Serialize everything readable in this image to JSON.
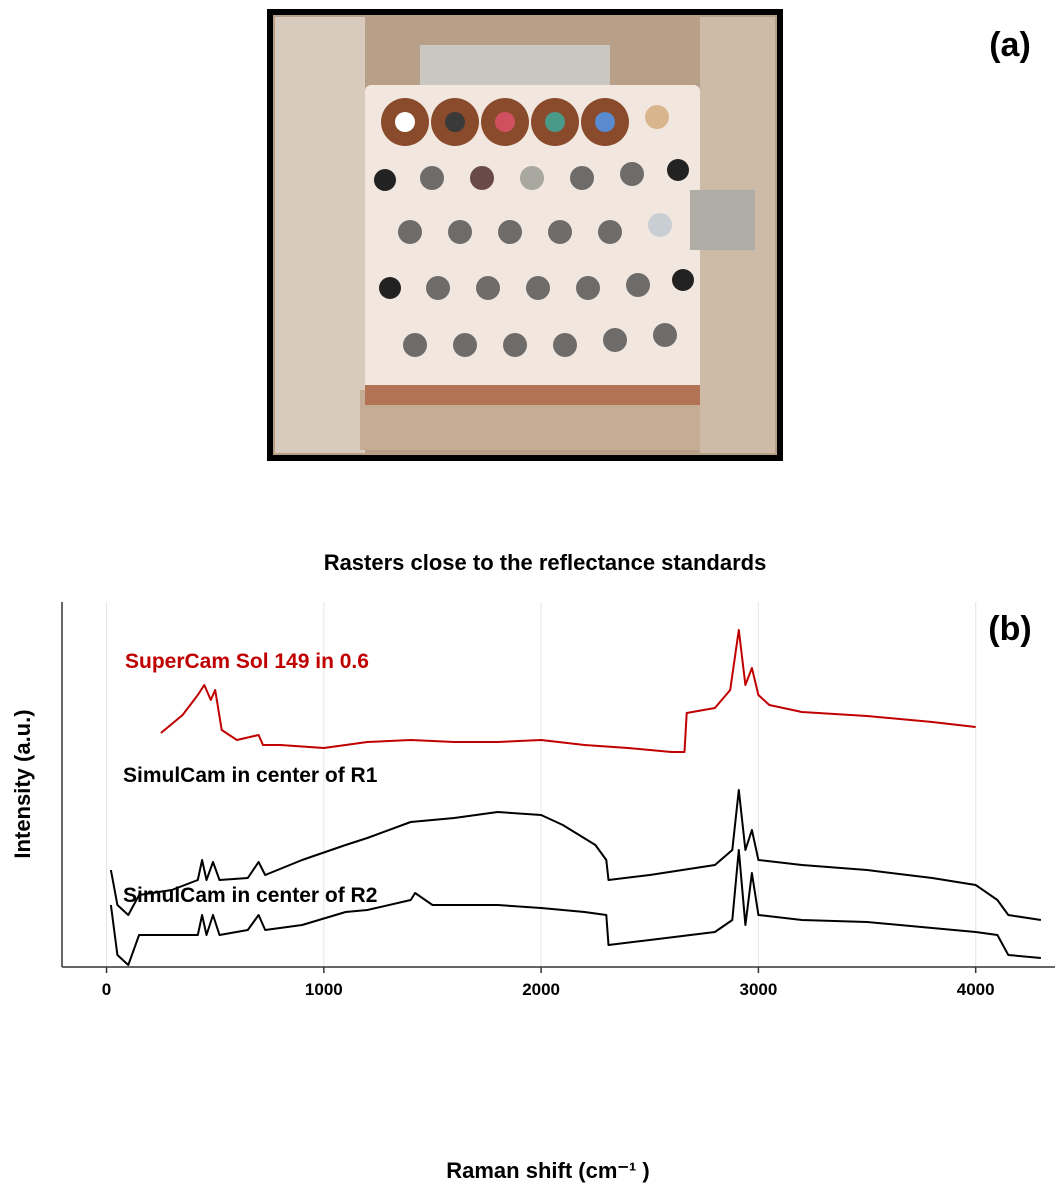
{
  "panel_a": {
    "label": "(a)"
  },
  "chart_data": {
    "type": "line",
    "panel_label": "(b)",
    "title": "Rasters close to the reflectance standards",
    "x_label": "Raman shift (cm⁻¹ )",
    "y_label": "Intensity (a.u.)",
    "xlim": [
      -205,
      4365
    ],
    "ylim": [
      -5,
      360
    ],
    "xticks": [
      0,
      1000,
      2000,
      3000,
      4000
    ],
    "grid": true,
    "series": [
      {
        "name": "SuperCam Sol 149 in 0.6",
        "color": "#c00000",
        "x": [
          250,
          350,
          420,
          450,
          480,
          500,
          530,
          600,
          700,
          720,
          800,
          1000,
          1200,
          1400,
          1600,
          1800,
          2000,
          2200,
          2400,
          2600,
          2660,
          2670,
          2800,
          2870,
          2910,
          2940,
          2970,
          3000,
          3050,
          3200,
          3500,
          3800,
          4000
        ],
        "values": [
          229,
          247,
          267,
          277,
          262,
          272,
          232,
          222,
          227,
          217,
          217,
          214,
          220,
          222,
          220,
          220,
          222,
          217,
          214,
          210,
          210,
          249,
          254,
          272,
          332,
          277,
          294,
          267,
          257,
          250,
          246,
          240,
          235
        ]
      },
      {
        "name": "SimulCam in center of R1",
        "color": "#000000",
        "x": [
          20,
          50,
          100,
          150,
          300,
          420,
          440,
          460,
          490,
          520,
          650,
          700,
          730,
          900,
          1100,
          1200,
          1400,
          1600,
          1800,
          2000,
          2100,
          2250,
          2300,
          2310,
          2500,
          2800,
          2880,
          2910,
          2940,
          2970,
          3000,
          3200,
          3500,
          3800,
          4000,
          4100,
          4150,
          4300
        ],
        "values": [
          92,
          57,
          47,
          67,
          72,
          82,
          102,
          82,
          100,
          82,
          84,
          100,
          87,
          102,
          117,
          124,
          140,
          144,
          150,
          147,
          137,
          117,
          102,
          82,
          87,
          97,
          112,
          172,
          112,
          132,
          102,
          97,
          92,
          84,
          77,
          62,
          47,
          42
        ]
      },
      {
        "name": "SimulCam in center of R2",
        "color": "#000000",
        "x": [
          20,
          50,
          100,
          150,
          300,
          420,
          440,
          460,
          490,
          520,
          650,
          700,
          730,
          900,
          1100,
          1200,
          1400,
          1420,
          1500,
          1800,
          2000,
          2200,
          2300,
          2310,
          2500,
          2800,
          2880,
          2910,
          2940,
          2970,
          3000,
          3200,
          3500,
          3800,
          4000,
          4100,
          4150,
          4300
        ],
        "values": [
          57,
          7,
          -3,
          27,
          27,
          27,
          47,
          27,
          47,
          27,
          32,
          47,
          32,
          37,
          50,
          52,
          62,
          69,
          57,
          57,
          54,
          50,
          47,
          17,
          22,
          30,
          42,
          112,
          37,
          89,
          47,
          42,
          40,
          34,
          30,
          27,
          7,
          4
        ]
      }
    ]
  }
}
